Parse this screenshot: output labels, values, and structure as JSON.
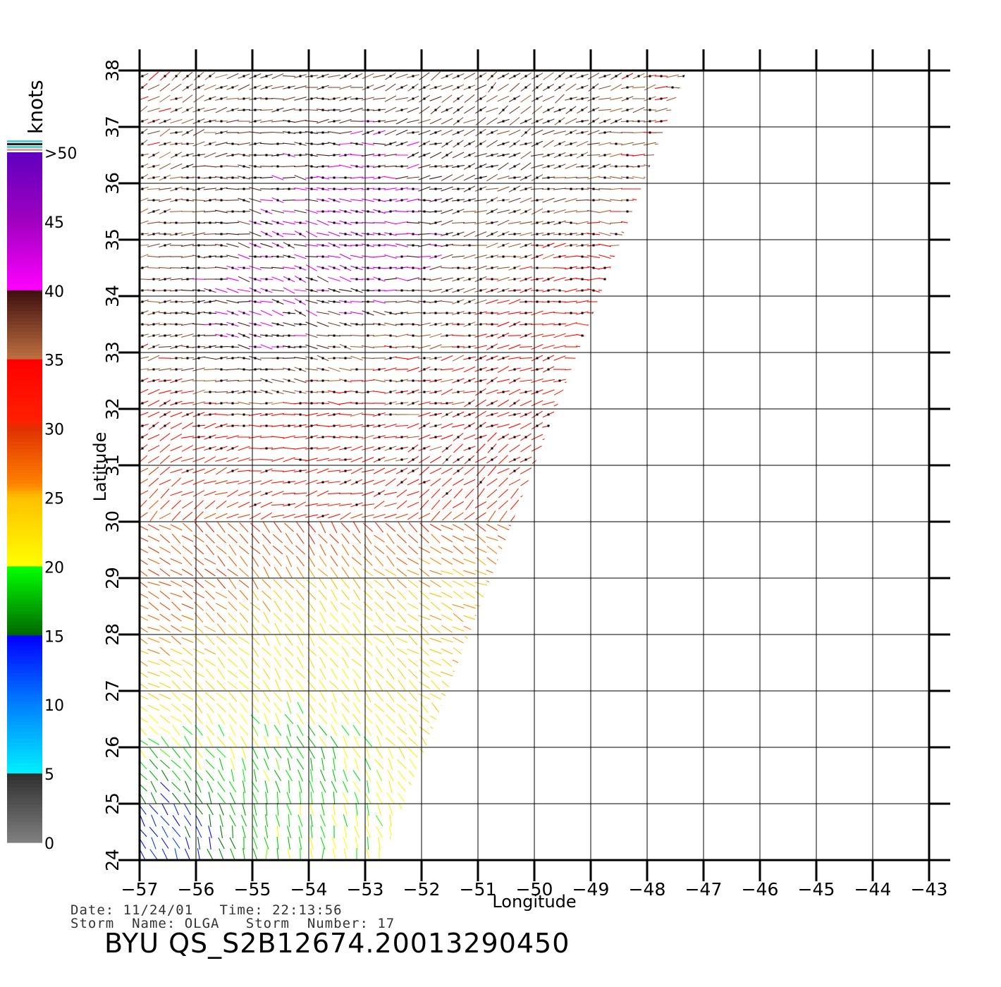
{
  "chart_data": {
    "type": "scatter",
    "title": "BYU  QS_S2B12674.20013290450",
    "xlabel": "Longitude",
    "ylabel": "Latitude",
    "xlim": [
      -57,
      -43
    ],
    "ylim": [
      24,
      38
    ],
    "x_ticks": [
      "−57",
      "−56",
      "−55",
      "−54",
      "−53",
      "−52",
      "−51",
      "−50",
      "−49",
      "−48",
      "−47",
      "−46",
      "−45",
      "−44",
      "−43"
    ],
    "y_ticks": [
      "24",
      "25",
      "26",
      "27",
      "28",
      "29",
      "30",
      "31",
      "32",
      "33",
      "34",
      "35",
      "36",
      "37",
      "38"
    ],
    "grid": true,
    "swath_polygon_lon_lat": [
      [
        -57,
        24
      ],
      [
        -52.7,
        24
      ],
      [
        -47.3,
        38
      ],
      [
        -57,
        38
      ]
    ],
    "wind_field_samples": [
      {
        "lon": -56.5,
        "lat": 24.5,
        "speed_knots": 12
      },
      {
        "lon": -54.0,
        "lat": 25.8,
        "speed_knots": 17
      },
      {
        "lon": -55.0,
        "lat": 27.5,
        "speed_knots": 22
      },
      {
        "lon": -53.5,
        "lat": 28.0,
        "speed_knots": 20
      },
      {
        "lon": -56.0,
        "lat": 29.0,
        "speed_knots": 30
      },
      {
        "lon": -54.0,
        "lat": 30.5,
        "speed_knots": 33
      },
      {
        "lon": -51.5,
        "lat": 28.5,
        "speed_knots": 24
      },
      {
        "lon": -52.0,
        "lat": 31.5,
        "speed_knots": 36
      },
      {
        "lon": -55.0,
        "lat": 33.5,
        "speed_knots": 42
      },
      {
        "lon": -53.0,
        "lat": 35.0,
        "speed_knots": 45
      },
      {
        "lon": -50.0,
        "lat": 36.5,
        "speed_knots": 38
      },
      {
        "lon": -49.5,
        "lat": 33.0,
        "speed_knots": 32
      }
    ],
    "colorbar": {
      "label": "knots",
      "ticks": [
        "0",
        "5",
        "10",
        "15",
        "20",
        "25",
        "30",
        "35",
        "40",
        "45",
        ">50"
      ],
      "colors": {
        "0-5": [
          "#808080",
          "#303030"
        ],
        "5-10": [
          "#00f0ff",
          "#0080ff"
        ],
        "10-15": [
          "#0060ff",
          "#0000ff"
        ],
        "15-20": [
          "#006600",
          "#00ff00"
        ],
        "20-25": [
          "#ffff00",
          "#ffc000"
        ],
        "25-30": [
          "#ff8000",
          "#e03000"
        ],
        "30-35": [
          "#ff2000",
          "#ff0000"
        ],
        "35-40": [
          "#c07040",
          "#401010"
        ],
        "40-45": [
          "#ff00ff",
          "#a000c0"
        ],
        "45-50": [
          "#a000c0",
          "#6000c0"
        ]
      }
    }
  },
  "info": {
    "line1": "Date: 11/24/01   Time: 22:13:56",
    "line2": "Storm  Name: OLGA   Storm  Number: 17"
  }
}
